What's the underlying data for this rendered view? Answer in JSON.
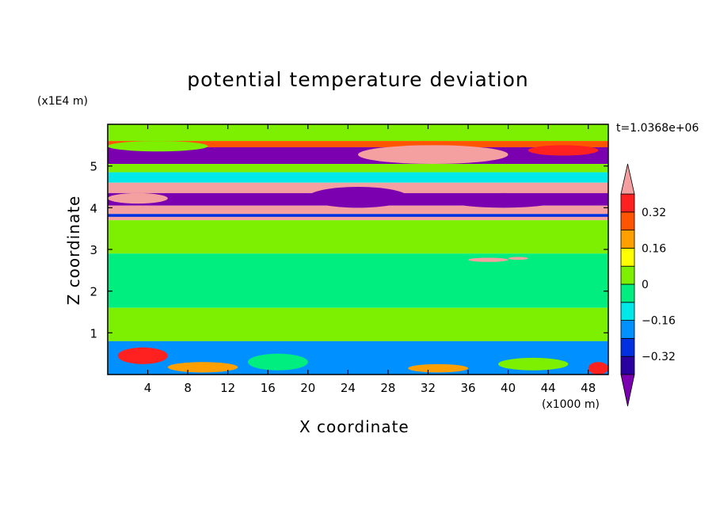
{
  "chart_data": {
    "type": "heatmap",
    "title": "potential temperature deviation",
    "xlabel": "X coordinate",
    "ylabel": "Z coordinate",
    "x_unit": "(x1000 m)",
    "y_unit": "(x1E4 m)",
    "annotation": "t=1.0368e+06",
    "xlim": [
      0,
      50
    ],
    "ylim": [
      0,
      6
    ],
    "x_ticks": [
      "4",
      "8",
      "12",
      "16",
      "20",
      "24",
      "28",
      "32",
      "36",
      "40",
      "44",
      "48"
    ],
    "x_tick_values": [
      4,
      8,
      12,
      16,
      20,
      24,
      28,
      32,
      36,
      40,
      44,
      48
    ],
    "y_ticks": [
      "1",
      "2",
      "3",
      "4",
      "5"
    ],
    "y_tick_values": [
      1,
      2,
      3,
      4,
      5
    ],
    "colorbar": {
      "labels": [
        "0.32",
        "0.16",
        "0",
        "−0.16",
        "−0.32"
      ],
      "label_values": [
        0.32,
        0.16,
        0,
        -0.16,
        -0.32
      ],
      "levels": [
        -0.4,
        -0.32,
        -0.24,
        -0.16,
        -0.08,
        0,
        0.08,
        0.16,
        0.24,
        0.32,
        0.4
      ],
      "colors": [
        "#7a00b0",
        "#2a00a0",
        "#0030e0",
        "#0090ff",
        "#00e8e8",
        "#00ee80",
        "#7cf000",
        "#ffff00",
        "#ffa000",
        "#ff5500",
        "#ff2020",
        "#f5a0a0"
      ],
      "extend": "both"
    },
    "bands": [
      {
        "z": [
          5.6,
          6.0
        ],
        "value": 0.05
      },
      {
        "z": [
          5.45,
          5.6
        ],
        "value": 0.3
      },
      {
        "z": [
          5.05,
          5.45
        ],
        "value": -0.42
      },
      {
        "z": [
          4.85,
          5.05
        ],
        "value": 0.05
      },
      {
        "z": [
          4.6,
          4.85
        ],
        "value": -0.1
      },
      {
        "z": [
          4.35,
          4.6
        ],
        "value": 0.45
      },
      {
        "z": [
          4.05,
          4.35
        ],
        "value": -0.42
      },
      {
        "z": [
          3.85,
          4.05
        ],
        "value": 0.45
      },
      {
        "z": [
          3.78,
          3.85
        ],
        "value": -0.3
      },
      {
        "z": [
          3.7,
          3.78
        ],
        "value": 0.45
      },
      {
        "z": [
          2.9,
          3.7
        ],
        "value": 0.05
      },
      {
        "z": [
          1.6,
          2.9
        ],
        "value": -0.05
      },
      {
        "z": [
          0.8,
          1.6
        ],
        "value": 0.05
      },
      {
        "z": [
          0.0,
          0.8
        ],
        "value": -0.2
      }
    ],
    "patches": [
      {
        "x": [
          25,
          40
        ],
        "z": [
          5.05,
          5.5
        ],
        "value": 0.45
      },
      {
        "x": [
          42,
          49
        ],
        "z": [
          5.25,
          5.5
        ],
        "value": 0.32
      },
      {
        "x": [
          0,
          10
        ],
        "z": [
          5.35,
          5.6
        ],
        "value": 0.05
      },
      {
        "x": [
          0,
          6
        ],
        "z": [
          4.1,
          4.35
        ],
        "value": 0.45
      },
      {
        "x": [
          20,
          30
        ],
        "z": [
          4.0,
          4.5
        ],
        "value": -0.42
      },
      {
        "x": [
          34,
          45
        ],
        "z": [
          4.0,
          4.35
        ],
        "value": -0.42
      },
      {
        "x": [
          1,
          6
        ],
        "z": [
          0.25,
          0.65
        ],
        "value": 0.32
      },
      {
        "x": [
          6,
          13
        ],
        "z": [
          0.05,
          0.3
        ],
        "value": 0.16
      },
      {
        "x": [
          14,
          20
        ],
        "z": [
          0.1,
          0.5
        ],
        "value": -0.05
      },
      {
        "x": [
          24,
          28
        ],
        "z": [
          0.2,
          0.45
        ],
        "value": -0.2
      },
      {
        "x": [
          30,
          36
        ],
        "z": [
          0.05,
          0.25
        ],
        "value": 0.2
      },
      {
        "x": [
          39,
          46
        ],
        "z": [
          0.1,
          0.4
        ],
        "value": 0.05
      },
      {
        "x": [
          48,
          50
        ],
        "z": [
          0.0,
          0.3
        ],
        "value": 0.32
      },
      {
        "x": [
          36,
          40
        ],
        "z": [
          2.7,
          2.8
        ],
        "value": 0.45
      },
      {
        "x": [
          40,
          42
        ],
        "z": [
          2.75,
          2.82
        ],
        "value": 0.45
      }
    ]
  }
}
